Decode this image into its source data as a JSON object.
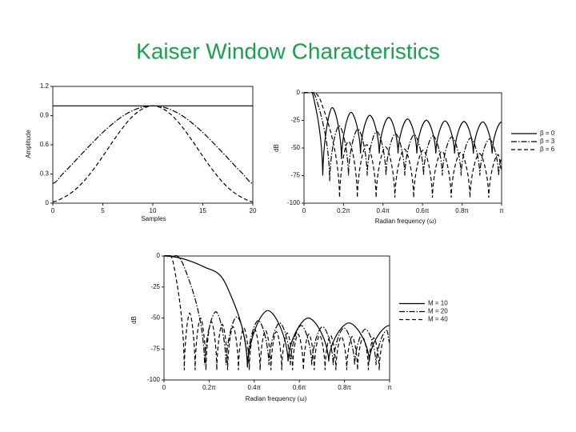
{
  "title": "Kaiser Window Characteristics",
  "chart_data": [
    {
      "type": "line",
      "xlabel": "Samples",
      "ylabel": "Amplitude",
      "x": [
        0,
        1,
        2,
        3,
        4,
        5,
        6,
        7,
        8,
        9,
        10,
        11,
        12,
        13,
        14,
        15,
        16,
        17,
        18,
        19,
        20
      ],
      "xlim": [
        0,
        20
      ],
      "xticks": [
        0,
        5,
        10,
        15,
        20
      ],
      "ylim": [
        0,
        1.2
      ],
      "yticks": [
        0,
        0.3,
        0.6,
        0.9,
        1.2
      ],
      "series": [
        {
          "color": "#000000",
          "dash": "solid",
          "values": [
            1,
            1,
            1,
            1,
            1,
            1,
            1,
            1,
            1,
            1,
            1,
            1,
            1,
            1,
            1,
            1,
            1,
            1,
            1,
            1,
            1
          ]
        },
        {
          "color": "#000000",
          "dash": "dashdot",
          "values": [
            0.205,
            0.302,
            0.408,
            0.518,
            0.625,
            0.727,
            0.818,
            0.895,
            0.952,
            0.988,
            1,
            0.988,
            0.952,
            0.895,
            0.818,
            0.727,
            0.625,
            0.518,
            0.408,
            0.302,
            0.205
          ]
        },
        {
          "color": "#000000",
          "dash": "dashed",
          "values": [
            0.015,
            0.054,
            0.119,
            0.214,
            0.339,
            0.482,
            0.634,
            0.776,
            0.894,
            0.971,
            1,
            0.971,
            0.894,
            0.776,
            0.634,
            0.482,
            0.339,
            0.214,
            0.119,
            0.054,
            0.015
          ]
        }
      ]
    },
    {
      "type": "line",
      "xlabel": "Radian frequency (ω)",
      "ylabel": "dB",
      "legend": "right",
      "xlim": [
        0,
        1
      ],
      "xticks": [
        0,
        {
          "value": 0.2,
          "label": "0.2π"
        },
        {
          "value": 0.4,
          "label": "0.4π"
        },
        {
          "value": 0.6,
          "label": "0.6π"
        },
        {
          "value": 0.8,
          "label": "0.8π"
        },
        {
          "value": 1,
          "label": "π"
        }
      ],
      "ylim": [
        -100,
        0
      ],
      "yticks": [
        0,
        -25,
        -50,
        -75,
        -100
      ],
      "series": [
        {
          "name": "β = 0",
          "color": "#000000",
          "dash": "solid",
          "x": [
            0,
            0.048,
            0.095,
            0.143,
            0.19,
            0.238,
            0.286,
            0.333,
            0.381,
            0.429,
            0.476,
            0.524,
            0.571,
            0.619,
            0.667,
            0.714,
            0.762,
            0.81,
            0.857,
            0.905,
            0.952,
            1
          ],
          "values": [
            0,
            -4,
            -75,
            -13.4,
            -60,
            -17.7,
            -55,
            -20.4,
            -55,
            -22.3,
            -55,
            -23.7,
            -55,
            -24.8,
            -55,
            -25.5,
            -55,
            -26,
            -55,
            -26.3,
            -55,
            -26.4
          ]
        },
        {
          "name": "β = 3",
          "color": "#000000",
          "dash": "dashdot",
          "x": [
            0,
            0.065,
            0.13,
            0.178,
            0.225,
            0.273,
            0.32,
            0.368,
            0.415,
            0.463,
            0.51,
            0.558,
            0.605,
            0.653,
            0.7,
            0.748,
            0.795,
            0.843,
            0.89,
            0.938,
            0.985,
            1
          ],
          "values": [
            0,
            -7,
            -80,
            -30,
            -75,
            -33,
            -75,
            -35,
            -75,
            -37,
            -75,
            -38,
            -75,
            -39,
            -75,
            -40,
            -75,
            -41,
            -75,
            -42,
            -75,
            -60
          ]
        },
        {
          "name": "β = 6",
          "color": "#000000",
          "dash": "dashed",
          "x": [
            0,
            0.09,
            0.18,
            0.225,
            0.27,
            0.318,
            0.365,
            0.413,
            0.46,
            0.508,
            0.555,
            0.603,
            0.65,
            0.698,
            0.745,
            0.793,
            0.84,
            0.888,
            0.935,
            0.983,
            1
          ],
          "values": [
            0,
            -10,
            -95,
            -44,
            -95,
            -47,
            -95,
            -49,
            -95,
            -51,
            -95,
            -52,
            -95,
            -53,
            -95,
            -54,
            -95,
            -55,
            -95,
            -56,
            -70
          ]
        }
      ]
    },
    {
      "type": "line",
      "xlabel": "Radian frequency (ω)",
      "ylabel": "dB",
      "legend": "right",
      "xlim": [
        0,
        1
      ],
      "xticks": [
        0,
        {
          "value": 0.2,
          "label": "0.2π"
        },
        {
          "value": 0.4,
          "label": "0.4π"
        },
        {
          "value": 0.6,
          "label": "0.6π"
        },
        {
          "value": 0.8,
          "label": "0.8π"
        },
        {
          "value": 1,
          "label": "π"
        }
      ],
      "ylim": [
        -100,
        0
      ],
      "yticks": [
        0,
        -25,
        -50,
        -75,
        -100
      ],
      "series": [
        {
          "name": "M = 10",
          "color": "#000000",
          "dash": "solid",
          "x": [
            0,
            0.18,
            0.28,
            0.37,
            0.46,
            0.55,
            0.64,
            0.73,
            0.82,
            0.91,
            1
          ],
          "values": [
            0,
            -9,
            -25,
            -90,
            -44,
            -85,
            -50,
            -85,
            -54,
            -85,
            -56
          ]
        },
        {
          "name": "M = 20",
          "color": "#000000",
          "dash": "dashdot",
          "x": [
            0,
            0.09,
            0.18,
            0.23,
            0.275,
            0.323,
            0.37,
            0.418,
            0.465,
            0.513,
            0.56,
            0.608,
            0.655,
            0.703,
            0.75,
            0.798,
            0.845,
            0.893,
            0.94,
            0.988,
            1
          ],
          "values": [
            0,
            -9,
            -88,
            -45,
            -88,
            -49,
            -88,
            -52,
            -88,
            -54,
            -88,
            -56,
            -88,
            -57,
            -88,
            -58,
            -88,
            -59,
            -88,
            -60,
            -70
          ]
        },
        {
          "name": "M = 40",
          "color": "#000000",
          "dash": "dashed",
          "x": [
            0,
            0.045,
            0.09,
            0.114,
            0.138,
            0.162,
            0.186,
            0.21,
            0.234,
            0.258,
            0.282,
            0.306,
            0.33,
            0.354,
            0.378,
            0.402,
            0.426,
            0.45,
            0.474,
            0.498,
            0.522,
            0.546,
            0.57,
            0.594,
            0.618,
            0.642,
            0.666,
            0.69,
            0.714,
            0.738,
            0.762,
            0.786,
            0.81,
            0.834,
            0.858,
            0.882,
            0.906,
            0.93,
            0.954,
            0.978
          ],
          "values": [
            0,
            -9,
            -92,
            -46,
            -92,
            -50,
            -92,
            -53,
            -92,
            -55,
            -92,
            -57,
            -92,
            -58,
            -92,
            -59,
            -92,
            -60,
            -92,
            -61,
            -92,
            -62,
            -92,
            -63,
            -92,
            -63,
            -92,
            -64,
            -92,
            -64,
            -92,
            -65,
            -92,
            -65,
            -92,
            -66,
            -92,
            -66,
            -92,
            -66
          ]
        }
      ]
    }
  ]
}
